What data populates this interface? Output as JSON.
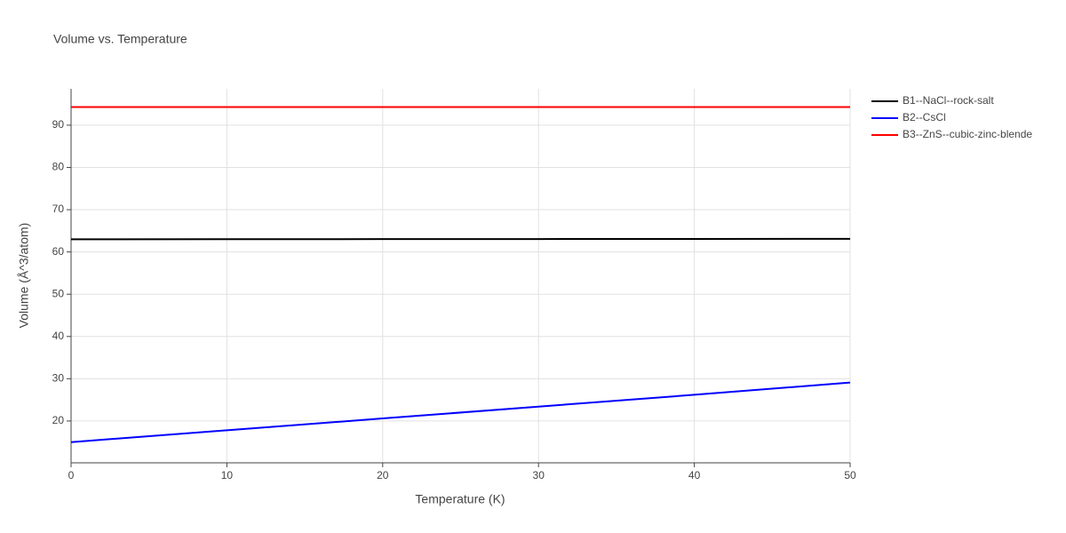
{
  "chart_data": {
    "type": "line",
    "title": "Volume vs. Temperature",
    "x_label": "Temperature (K)",
    "y_label": "Volume (Å^3/atom)",
    "x": [
      0,
      10,
      20,
      30,
      40,
      50
    ],
    "series": [
      {
        "name": "B1--NaCl--rock-salt",
        "color": "#000000",
        "values": [
          63.0,
          63.02,
          63.04,
          63.06,
          63.08,
          63.1
        ]
      },
      {
        "name": "B2--CsCl",
        "color": "#0000ff",
        "values": [
          15.0,
          17.8,
          20.6,
          23.4,
          26.2,
          29.1
        ]
      },
      {
        "name": "B3--ZnS--cubic-zinc-blende",
        "color": "#ff0000",
        "values": [
          94.3,
          94.3,
          94.3,
          94.3,
          94.3,
          94.3
        ]
      }
    ],
    "xlim": [
      0,
      50
    ],
    "xticks": [
      0,
      10,
      20,
      30,
      40,
      50
    ],
    "ylim": [
      10.1,
      98.6
    ],
    "yticks": [
      20,
      30,
      40,
      50,
      60,
      70,
      80,
      90
    ],
    "grid": true,
    "legend": "right"
  }
}
